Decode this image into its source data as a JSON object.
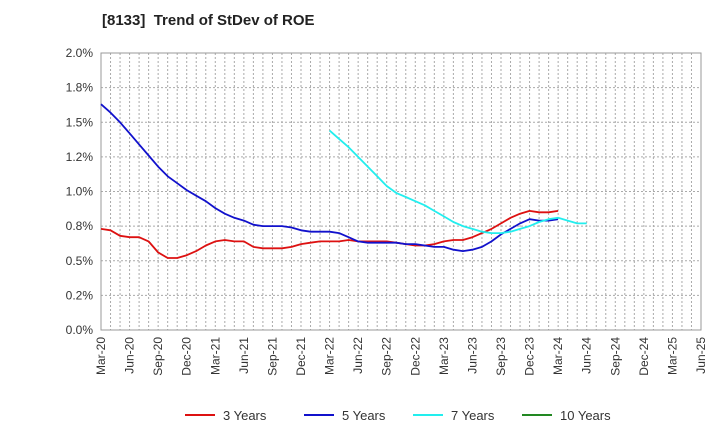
{
  "chart_data": {
    "type": "line",
    "title": "[8133]  Trend of StDev of ROE",
    "xlabel": "",
    "ylabel": "",
    "ylim": [
      0,
      2.0
    ],
    "ytick_labels": [
      "0.0%",
      "0.2%",
      "0.5%",
      "0.8%",
      "1.0%",
      "1.2%",
      "1.5%",
      "1.8%",
      "2.0%"
    ],
    "x_categories": [
      "Mar-20",
      "Jun-20",
      "Sep-20",
      "Dec-20",
      "Mar-21",
      "Jun-21",
      "Sep-21",
      "Dec-21",
      "Mar-22",
      "Jun-22",
      "Sep-22",
      "Dec-22",
      "Mar-23",
      "Jun-23",
      "Sep-23",
      "Dec-23",
      "Mar-24",
      "Jun-24",
      "Sep-24",
      "Dec-24",
      "Mar-25",
      "Jun-25"
    ],
    "grid": true,
    "legend_position": "bottom",
    "series": [
      {
        "name": "3 Years",
        "color": "#dd1111",
        "start_index": 0,
        "values": [
          0.73,
          0.72,
          0.68,
          0.67,
          0.67,
          0.64,
          0.56,
          0.52,
          0.52,
          0.54,
          0.57,
          0.61,
          0.64,
          0.65,
          0.64,
          0.64,
          0.6,
          0.59,
          0.59,
          0.59,
          0.6,
          0.62,
          0.63,
          0.64,
          0.64,
          0.64,
          0.65,
          0.64,
          0.64,
          0.64,
          0.64,
          0.63,
          0.62,
          0.61,
          0.61,
          0.62,
          0.64,
          0.65,
          0.65,
          0.67,
          0.7,
          0.73,
          0.77,
          0.81,
          0.84,
          0.86,
          0.85,
          0.85,
          0.86
        ]
      },
      {
        "name": "5 Years",
        "color": "#1111cc",
        "start_index": 0,
        "values": [
          1.63,
          1.57,
          1.5,
          1.42,
          1.34,
          1.26,
          1.18,
          1.11,
          1.06,
          1.01,
          0.97,
          0.93,
          0.88,
          0.84,
          0.81,
          0.79,
          0.76,
          0.75,
          0.75,
          0.75,
          0.74,
          0.72,
          0.71,
          0.71,
          0.71,
          0.7,
          0.67,
          0.64,
          0.63,
          0.63,
          0.63,
          0.63,
          0.62,
          0.62,
          0.61,
          0.6,
          0.6,
          0.58,
          0.57,
          0.58,
          0.6,
          0.64,
          0.69,
          0.73,
          0.77,
          0.8,
          0.79,
          0.79,
          0.8
        ]
      },
      {
        "name": "7 Years",
        "color": "#22eeee",
        "start_index": 24,
        "values": [
          1.44,
          1.38,
          1.32,
          1.25,
          1.18,
          1.11,
          1.04,
          0.99,
          0.96,
          0.93,
          0.9,
          0.86,
          0.82,
          0.78,
          0.75,
          0.73,
          0.71,
          0.7,
          0.7,
          0.71,
          0.73,
          0.75,
          0.78,
          0.8,
          0.81,
          0.79,
          0.77,
          0.77
        ]
      },
      {
        "name": "10 Years",
        "color": "#228822",
        "start_index": 0,
        "values": []
      }
    ]
  }
}
